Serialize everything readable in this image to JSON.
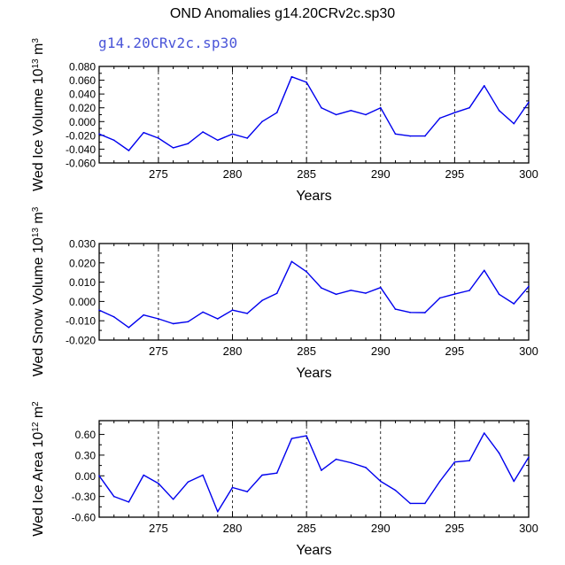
{
  "figure": {
    "title": "OND Anomalies g14.20CRv2c.sp30",
    "run_label": "g14.20CRv2c.sp30",
    "line_color": "#0000ee",
    "run_label_color": "#4a55d8"
  },
  "chart_data": [
    {
      "type": "line",
      "ylabel": "Wed Ice Volume 10^13 m^3",
      "xlabel": "Years",
      "xlim": [
        271,
        300
      ],
      "ylim": [
        -0.06,
        0.08
      ],
      "xticks": [
        275,
        280,
        285,
        290,
        295,
        300
      ],
      "yticks": [
        -0.06,
        -0.04,
        -0.02,
        0.0,
        0.02,
        0.04,
        0.06,
        0.08
      ],
      "ytick_labels": [
        "-0.060",
        "-0.040",
        "-0.020",
        "0.000",
        "0.020",
        "0.040",
        "0.060",
        "0.080"
      ],
      "grid": "dashed vertical lines at x ticks",
      "x": [
        271,
        272,
        273,
        274,
        275,
        276,
        277,
        278,
        279,
        280,
        281,
        282,
        283,
        284,
        285,
        286,
        287,
        288,
        289,
        290,
        291,
        292,
        293,
        294,
        295,
        296,
        297,
        298,
        299,
        300
      ],
      "series": [
        {
          "values": [
            -0.018,
            -0.027,
            -0.042,
            -0.016,
            -0.024,
            -0.038,
            -0.032,
            -0.015,
            -0.027,
            -0.018,
            -0.024,
            0.0,
            0.013,
            0.065,
            0.057,
            0.02,
            0.01,
            0.016,
            0.01,
            0.02,
            -0.018,
            -0.021,
            -0.021,
            0.005,
            0.013,
            0.02,
            0.052,
            0.016,
            -0.003,
            0.028
          ]
        }
      ]
    },
    {
      "type": "line",
      "ylabel": "Wed Snow Volume 10^13 m^3",
      "xlabel": "Years",
      "xlim": [
        271,
        300
      ],
      "ylim": [
        -0.02,
        0.03
      ],
      "xticks": [
        275,
        280,
        285,
        290,
        295,
        300
      ],
      "yticks": [
        -0.02,
        -0.01,
        0.0,
        0.01,
        0.02,
        0.03
      ],
      "ytick_labels": [
        "-0.020",
        "-0.010",
        "0.000",
        "0.010",
        "0.020",
        "0.030"
      ],
      "grid": "dashed vertical lines at x ticks",
      "x": [
        271,
        272,
        273,
        274,
        275,
        276,
        277,
        278,
        279,
        280,
        281,
        282,
        283,
        284,
        285,
        286,
        287,
        288,
        289,
        290,
        291,
        292,
        293,
        294,
        295,
        296,
        297,
        298,
        299,
        300
      ],
      "series": [
        {
          "values": [
            -0.0045,
            -0.008,
            -0.0135,
            -0.007,
            -0.009,
            -0.0115,
            -0.0105,
            -0.0055,
            -0.009,
            -0.0045,
            -0.0062,
            0.0005,
            0.0042,
            0.0207,
            0.0154,
            0.007,
            0.0037,
            0.0058,
            0.0043,
            0.0072,
            -0.004,
            -0.0057,
            -0.0058,
            0.0018,
            0.0038,
            0.0057,
            0.0161,
            0.0037,
            -0.0012,
            0.0078
          ]
        }
      ]
    },
    {
      "type": "line",
      "ylabel": "Wed Ice Area 10^12 m^2",
      "xlabel": "Years",
      "xlim": [
        271,
        300
      ],
      "ylim": [
        -0.6,
        0.8
      ],
      "xticks": [
        275,
        280,
        285,
        290,
        295,
        300
      ],
      "yticks": [
        -0.6,
        -0.3,
        0.0,
        0.3,
        0.6
      ],
      "ytick_labels": [
        "-0.60",
        "-0.30",
        "0.00",
        "0.30",
        "0.60"
      ],
      "grid": "dashed vertical lines at x ticks",
      "x": [
        271,
        272,
        273,
        274,
        275,
        276,
        277,
        278,
        279,
        280,
        281,
        282,
        283,
        284,
        285,
        286,
        287,
        288,
        289,
        290,
        291,
        292,
        293,
        294,
        295,
        296,
        297,
        298,
        299,
        300
      ],
      "series": [
        {
          "values": [
            0.0,
            -0.3,
            -0.38,
            0.01,
            -0.11,
            -0.34,
            -0.09,
            0.01,
            -0.52,
            -0.17,
            -0.23,
            0.01,
            0.04,
            0.54,
            0.58,
            0.08,
            0.24,
            0.19,
            0.12,
            -0.08,
            -0.21,
            -0.4,
            -0.4,
            -0.08,
            0.2,
            0.22,
            0.62,
            0.33,
            -0.08,
            0.27
          ]
        }
      ]
    }
  ]
}
